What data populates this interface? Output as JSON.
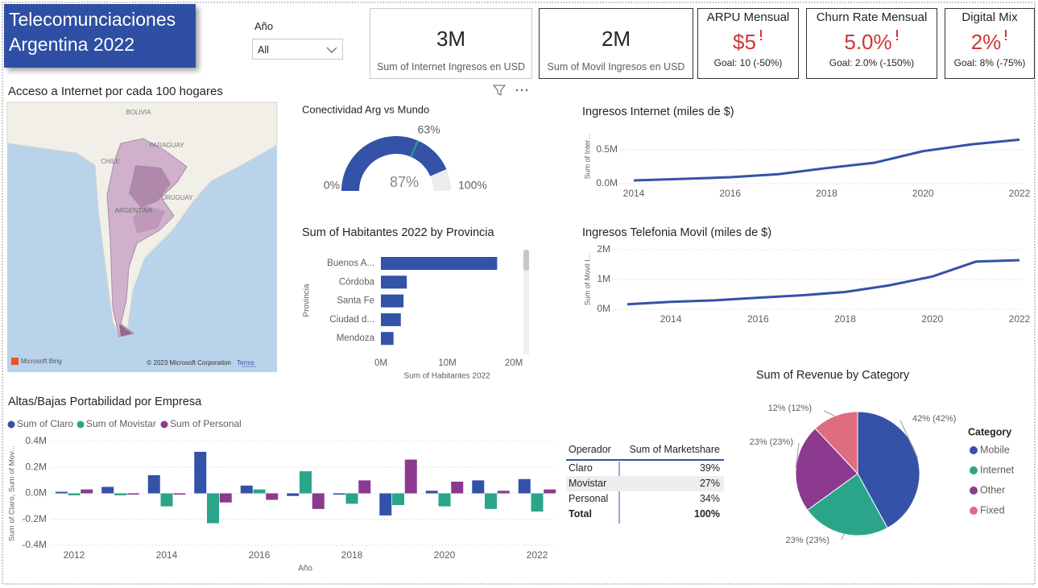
{
  "header": {
    "title": "Telecomunciaciones Argentina 2022"
  },
  "slicer": {
    "label": "Año",
    "value": "All"
  },
  "cards": [
    {
      "value": "3M",
      "label": "Sum of Internet Ingresos en USD"
    },
    {
      "value": "2M",
      "label": "Sum of Movil Ingresos en USD"
    }
  ],
  "kpis": [
    {
      "title": "ARPU Mensual",
      "value": "$5",
      "goal": "Goal: 10 (-50%)"
    },
    {
      "title": "Churn Rate Mensual",
      "value": "5.0%",
      "goal": "Goal: 2.0% (-150%)"
    },
    {
      "title": "Digital Mix",
      "value": "2%",
      "goal": "Goal: 8% (-75%)"
    }
  ],
  "map": {
    "title": "Acceso a Internet por cada 100 hogares",
    "labels": [
      "BOLIVIA",
      "PARAGUAY",
      "CHILE",
      "URUGUAY",
      "ARGENTINA"
    ],
    "provider": "Microsoft Bing",
    "attribution": "© 2023 Microsoft Corporation",
    "terms": "Terms"
  },
  "table": {
    "headers": [
      "Operador",
      "Sum of Marketshare"
    ],
    "rows": [
      [
        "Claro",
        "39%"
      ],
      [
        "Movistar",
        "27%"
      ],
      [
        "Personal",
        "34%"
      ]
    ],
    "total": [
      "Total",
      "100%"
    ]
  },
  "chart_data": [
    {
      "type": "gauge",
      "title": "Conectividad Arg vs Mundo",
      "values": [
        87
      ],
      "value_labels": [
        "87%"
      ],
      "target": 63,
      "target_label": "63%",
      "ylim": [
        0,
        100
      ],
      "yticks": [
        {
          "value": 0,
          "label": "0%"
        },
        {
          "value": 100,
          "label": "100%"
        }
      ],
      "color": "#3352a8",
      "target_color": "#2aa58a",
      "track_color": "#ececec"
    },
    {
      "type": "bar",
      "orientation": "horizontal",
      "title": "Sum of Habitantes 2022 by Provincia",
      "xlabel": "Sum of Habitantes 2022",
      "ylabel": "Provincia",
      "categories": [
        "Buenos A...",
        "Córdoba",
        "Santa Fe",
        "Ciudad d...",
        "Mendoza"
      ],
      "values": [
        17500000,
        3900000,
        3400000,
        3000000,
        1900000
      ],
      "color": "#3352a8",
      "xlim": [
        0,
        20000000
      ],
      "xticks": [
        {
          "value": 0,
          "label": "0M"
        },
        {
          "value": 10000000,
          "label": "10M"
        },
        {
          "value": 20000000,
          "label": "20M"
        }
      ]
    },
    {
      "type": "line",
      "title": "Ingresos Internet (miles de $)",
      "ylabel": "Sum of Inter...",
      "x": [
        2014,
        2015,
        2016,
        2017,
        2018,
        2019,
        2020,
        2021,
        2022
      ],
      "values": [
        48000,
        70000,
        95000,
        140000,
        230000,
        310000,
        480000,
        580000,
        650000
      ],
      "color": "#3352a8",
      "xlim": [
        2014,
        2022
      ],
      "xticks": [
        2014,
        2016,
        2018,
        2020,
        2022
      ],
      "ylim": [
        0,
        800000
      ],
      "yticks": [
        {
          "value": 0,
          "label": "0.0M"
        },
        {
          "value": 500000,
          "label": "0.5M"
        }
      ],
      "grid": true
    },
    {
      "type": "line",
      "title": "Ingresos Telefonia Movil (miles de $)",
      "ylabel": "Sum of Movil I...",
      "x": [
        2013,
        2014,
        2015,
        2016,
        2017,
        2018,
        2019,
        2020,
        2021,
        2022
      ],
      "values": [
        170000,
        250000,
        300000,
        390000,
        470000,
        580000,
        800000,
        1100000,
        1600000,
        1650000
      ],
      "color": "#3352a8",
      "xlim": [
        2013,
        2022
      ],
      "xticks": [
        2014,
        2016,
        2018,
        2020,
        2022
      ],
      "ylim": [
        0,
        2000000
      ],
      "yticks": [
        {
          "value": 0,
          "label": "0M"
        },
        {
          "value": 1000000,
          "label": "1M"
        },
        {
          "value": 2000000,
          "label": "2M"
        }
      ],
      "grid": true
    },
    {
      "type": "bar",
      "orientation": "vertical",
      "title": "Altas/Bajas Portabilidad por Empresa",
      "xlabel": "Año",
      "ylabel": "Sum of Claro, Sum of Mov...",
      "categories": [
        2012,
        null,
        2014,
        null,
        2016,
        null,
        2018,
        null,
        2020,
        null,
        2022
      ],
      "series": [
        {
          "name": "Sum of Claro",
          "color": "#3352a8",
          "values": [
            12000,
            50000,
            140000,
            320000,
            60000,
            -20000,
            -10000,
            -170000,
            20000,
            100000,
            110000
          ]
        },
        {
          "name": "Sum of Movistar",
          "color": "#2aa58a",
          "values": [
            -15000,
            -15000,
            -100000,
            -230000,
            30000,
            170000,
            -80000,
            -90000,
            -100000,
            -120000,
            -140000
          ]
        },
        {
          "name": "Sum of Personal",
          "color": "#8b3a8f",
          "values": [
            30000,
            -10000,
            -10000,
            -70000,
            -50000,
            -120000,
            100000,
            260000,
            90000,
            20000,
            30000
          ]
        }
      ],
      "ylim": [
        -400000,
        400000
      ],
      "yticks": [
        {
          "value": -400000,
          "label": "-0.4M"
        },
        {
          "value": -200000,
          "label": "-0.2M"
        },
        {
          "value": 0,
          "label": "0.0M"
        },
        {
          "value": 200000,
          "label": "0.2M"
        },
        {
          "value": 400000,
          "label": "0.4M"
        }
      ],
      "grid": true
    },
    {
      "type": "pie",
      "title": "Sum of Revenue by Category",
      "legend_title": "Category",
      "categories": [
        "Mobile",
        "Internet",
        "Other",
        "Fixed"
      ],
      "values": [
        42,
        23,
        23,
        12
      ],
      "value_labels": [
        "42% (42%)",
        "23% (23%)",
        "23% (23%)",
        "12% (12%)"
      ],
      "colors": [
        "#3352a8",
        "#2aa58a",
        "#8b3a8f",
        "#e06c80"
      ]
    }
  ]
}
